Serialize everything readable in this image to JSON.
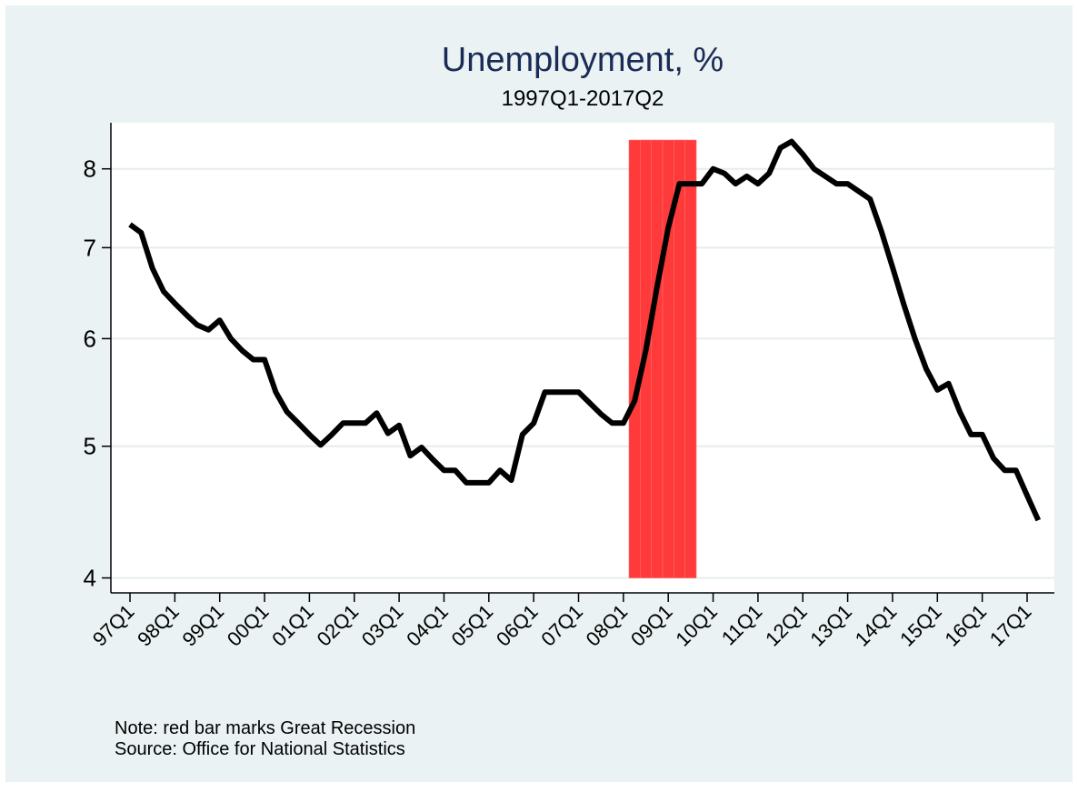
{
  "chart_data": {
    "type": "line",
    "title": "Unemployment, %",
    "subtitle": "1997Q1-2017Q2",
    "categories": [
      "97Q1",
      null,
      null,
      null,
      "98Q1",
      null,
      null,
      null,
      "99Q1",
      null,
      null,
      null,
      "00Q1",
      null,
      null,
      null,
      "01Q1",
      null,
      null,
      null,
      "02Q1",
      null,
      null,
      null,
      "03Q1",
      null,
      null,
      null,
      "04Q1",
      null,
      null,
      null,
      "05Q1",
      null,
      null,
      null,
      "06Q1",
      null,
      null,
      null,
      "07Q1",
      null,
      null,
      null,
      "08Q1",
      null,
      null,
      null,
      "09Q1",
      null,
      null,
      null,
      "10Q1",
      null,
      null,
      null,
      "11Q1",
      null,
      null,
      null,
      "12Q1",
      null,
      null,
      null,
      "13Q1",
      null,
      null,
      null,
      "14Q1",
      null,
      null,
      null,
      "15Q1",
      null,
      null,
      null,
      "16Q1",
      null,
      null,
      null,
      "17Q1",
      null
    ],
    "series": [
      {
        "type": "bar",
        "color": "#ff3a3a",
        "values": [
          null,
          null,
          null,
          null,
          null,
          null,
          null,
          null,
          null,
          null,
          null,
          null,
          null,
          null,
          null,
          null,
          null,
          null,
          null,
          null,
          null,
          null,
          null,
          null,
          null,
          null,
          null,
          null,
          null,
          null,
          null,
          null,
          null,
          null,
          null,
          null,
          null,
          null,
          null,
          null,
          null,
          null,
          null,
          null,
          null,
          8.4,
          8.4,
          8.4,
          8.4,
          8.4,
          8.4,
          null,
          null,
          null,
          null,
          null,
          null,
          null,
          null,
          null,
          null,
          null,
          null,
          null,
          null,
          null,
          null,
          null,
          null,
          null,
          null,
          null,
          null,
          null,
          null,
          null,
          null,
          null,
          null,
          null,
          null,
          null
        ]
      },
      {
        "type": "line",
        "color": "#000000",
        "values": [
          7.28,
          7.18,
          6.76,
          6.5,
          6.37,
          6.25,
          6.14,
          6.09,
          6.19,
          6.0,
          5.88,
          5.79,
          5.79,
          5.48,
          5.3,
          5.2,
          5.1,
          5.01,
          5.1,
          5.2,
          5.2,
          5.2,
          5.29,
          5.11,
          5.18,
          4.92,
          4.99,
          4.89,
          4.8,
          4.8,
          4.7,
          4.7,
          4.7,
          4.8,
          4.72,
          5.1,
          5.2,
          5.48,
          5.48,
          5.48,
          5.48,
          5.38,
          5.28,
          5.2,
          5.2,
          5.4,
          5.88,
          6.55,
          7.24,
          7.8,
          7.8,
          7.8,
          8.0,
          7.94,
          7.8,
          7.9,
          7.8,
          7.94,
          8.29,
          8.38,
          8.2,
          8.0,
          7.9,
          7.8,
          7.8,
          7.7,
          7.6,
          7.2,
          6.77,
          6.36,
          6.0,
          5.7,
          5.5,
          5.56,
          5.3,
          5.1,
          5.1,
          4.9,
          4.8,
          4.8,
          4.6,
          4.41
        ]
      }
    ],
    "bar_base": 4,
    "ylim": [
      3.9,
      8.65
    ],
    "yticks": [
      4,
      5,
      6,
      7,
      8
    ],
    "log_y": true,
    "grid": true,
    "notes": [
      "Note: red bar marks Great Recession",
      "Source: Office for National Statistics"
    ]
  }
}
